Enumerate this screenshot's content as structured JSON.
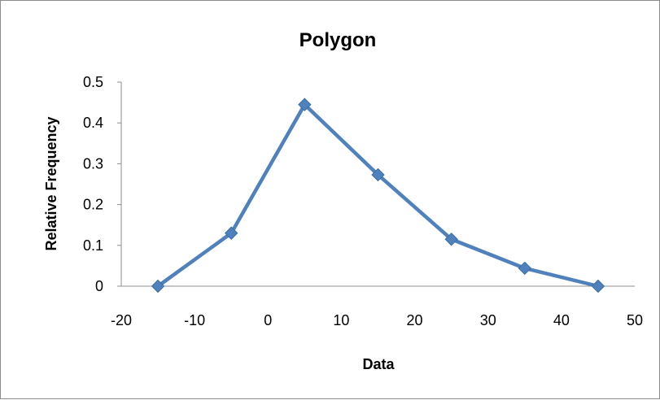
{
  "chart_data": {
    "type": "line",
    "title": "Polygon",
    "xlabel": "Data",
    "ylabel": "Relative Frequency",
    "xlim": [
      -20,
      50
    ],
    "ylim": [
      0,
      0.5
    ],
    "x_ticks": [
      "-20",
      "-10",
      "0",
      "10",
      "20",
      "30",
      "40",
      "50"
    ],
    "y_ticks": [
      "0",
      "0.1",
      "0.2",
      "0.3",
      "0.4",
      "0.5"
    ],
    "grid": false,
    "legend": "none",
    "marker": "diamond",
    "series": [
      {
        "color": "#4f81bd",
        "x": [
          -15,
          -5,
          5,
          15,
          25,
          35,
          45
        ],
        "y": [
          0,
          0.13,
          0.445,
          0.273,
          0.115,
          0.044,
          0
        ]
      }
    ]
  }
}
